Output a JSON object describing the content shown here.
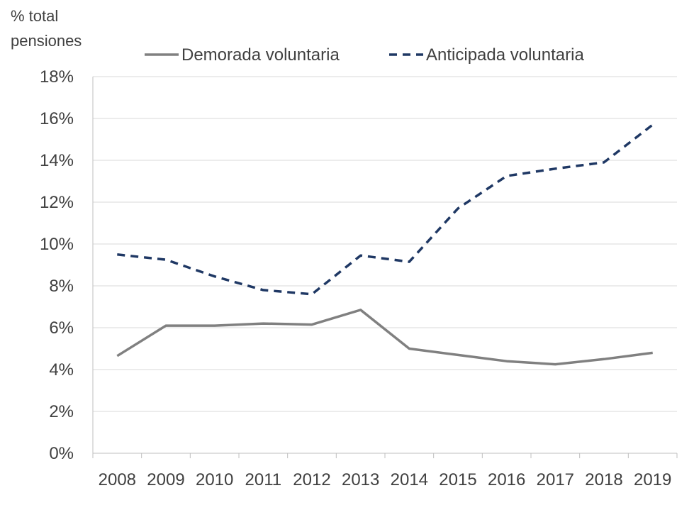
{
  "chart_data": {
    "type": "line",
    "title": "",
    "ylabel_lines": [
      "% total",
      "pensiones"
    ],
    "xlabel": "",
    "categories": [
      "2008",
      "2009",
      "2010",
      "2011",
      "2012",
      "2013",
      "2014",
      "2015",
      "2016",
      "2017",
      "2018",
      "2019"
    ],
    "ylim": [
      0,
      18
    ],
    "yticks": [
      0,
      2,
      4,
      6,
      8,
      10,
      12,
      14,
      16,
      18
    ],
    "ytick_labels": [
      "0%",
      "2%",
      "4%",
      "6%",
      "8%",
      "10%",
      "12%",
      "14%",
      "16%",
      "18%"
    ],
    "grid": true,
    "legend_position": "top",
    "series": [
      {
        "name": "Demorada voluntaria",
        "style": "solid",
        "color": "#808080",
        "values": [
          4.65,
          6.1,
          6.1,
          6.2,
          6.15,
          6.85,
          5.0,
          4.7,
          4.4,
          4.25,
          4.5,
          4.8
        ]
      },
      {
        "name": "Anticipada voluntaria",
        "style": "dashed",
        "color": "#1f3864",
        "values": [
          9.5,
          9.25,
          8.45,
          7.8,
          7.6,
          9.45,
          9.15,
          11.7,
          13.25,
          13.6,
          13.9,
          15.7
        ]
      }
    ]
  }
}
